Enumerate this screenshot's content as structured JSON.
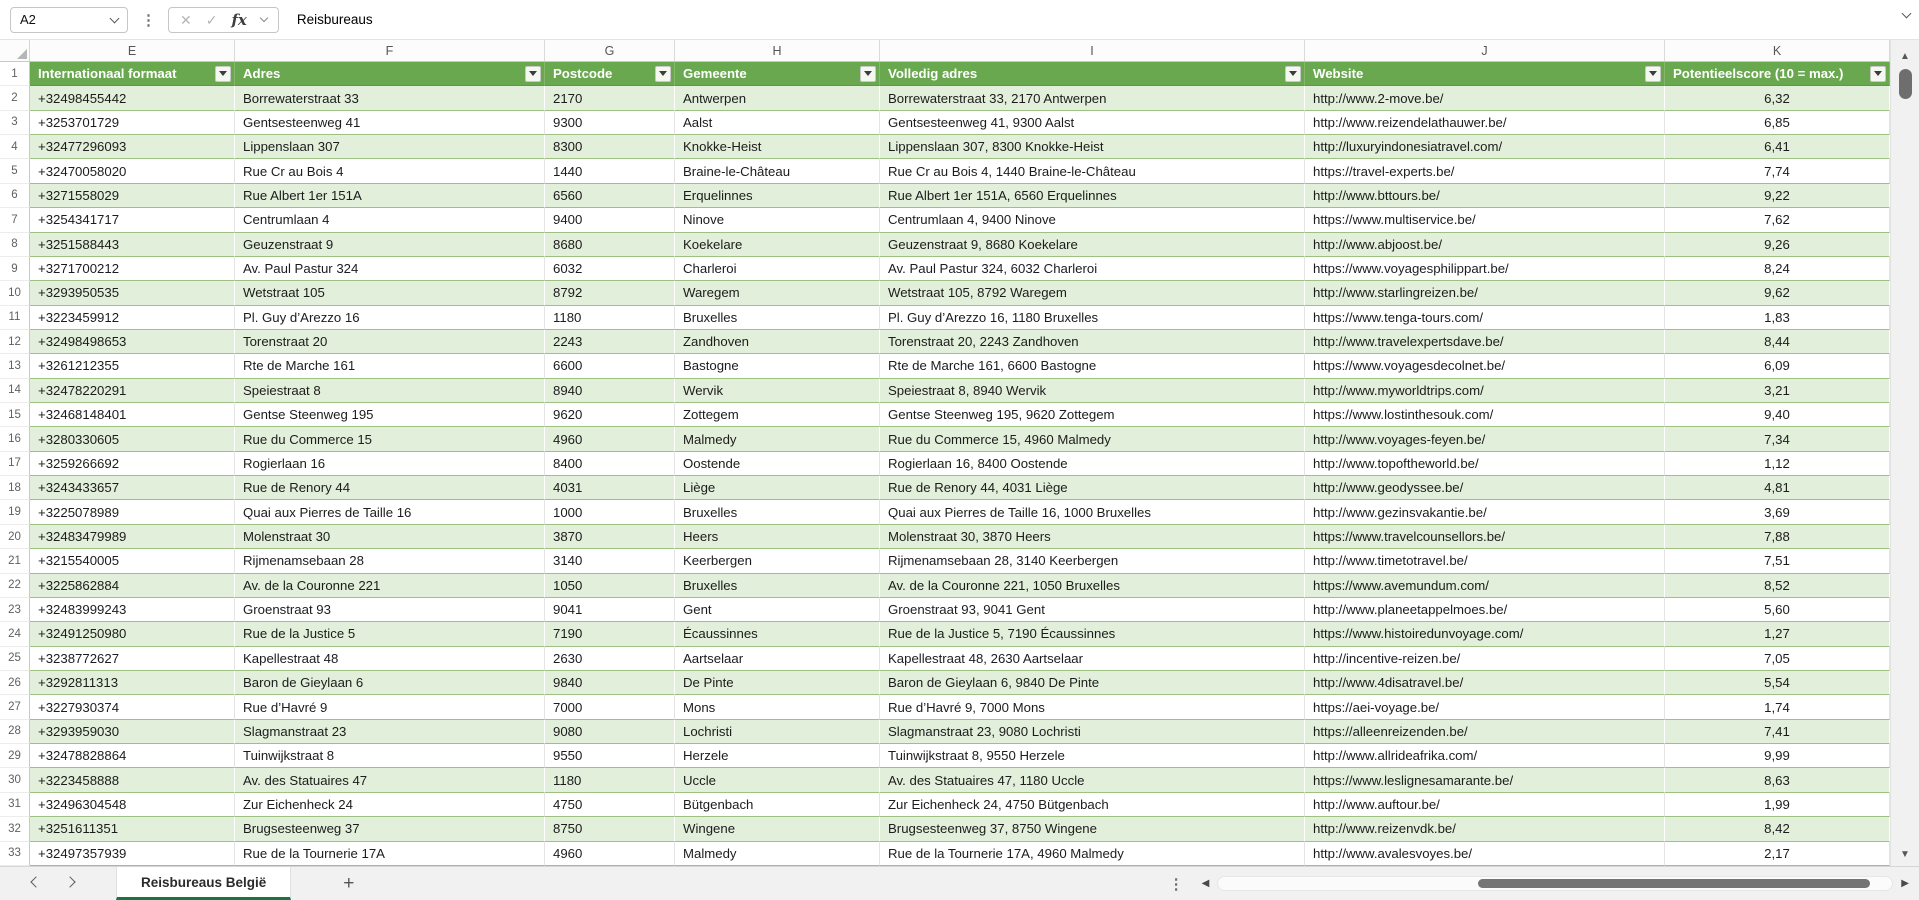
{
  "formula_bar": {
    "name_box": "A2",
    "formula": "Reisbureaus"
  },
  "icons": {
    "cancel": "✕",
    "confirm": "✓",
    "function": "fx",
    "more_vertical": "⋮",
    "add_sheet": "+",
    "scroll_up": "▲",
    "scroll_down": "▼",
    "scroll_left": "◀",
    "scroll_right": "▶"
  },
  "grid": {
    "column_letters": [
      "E",
      "F",
      "G",
      "H",
      "I",
      "J",
      "K"
    ],
    "first_row": 1,
    "row_count": 33
  },
  "table": {
    "colors": {
      "header_bg": "#6AA84F",
      "band_bg": "#E2EFDA",
      "gridline": "#9cc183"
    },
    "columns": [
      {
        "letter": "E",
        "label": "Internationaal formaat"
      },
      {
        "letter": "F",
        "label": "Adres"
      },
      {
        "letter": "G",
        "label": "Postcode"
      },
      {
        "letter": "H",
        "label": "Gemeente"
      },
      {
        "letter": "I",
        "label": "Volledig adres"
      },
      {
        "letter": "J",
        "label": "Website"
      },
      {
        "letter": "K",
        "label": "Potentieelscore (10 = max.)"
      }
    ],
    "rows": [
      [
        "+32498455442",
        "Borrewaterstraat 33",
        "2170",
        "Antwerpen",
        "Borrewaterstraat 33, 2170 Antwerpen",
        "http://www.2-move.be/",
        "6,32"
      ],
      [
        "+3253701729",
        "Gentsesteenweg 41",
        "9300",
        "Aalst",
        "Gentsesteenweg 41, 9300 Aalst",
        "http://www.reizendelathauwer.be/",
        "6,85"
      ],
      [
        "+32477296093",
        "Lippenslaan 307",
        "8300",
        "Knokke-Heist",
        "Lippenslaan 307, 8300 Knokke-Heist",
        "http://luxuryindonesiatravel.com/",
        "6,41"
      ],
      [
        "+32470058020",
        "Rue Cr au Bois 4",
        "1440",
        "Braine-le-Château",
        "Rue Cr au Bois 4, 1440 Braine-le-Château",
        "https://travel-experts.be/",
        "7,74"
      ],
      [
        "+3271558029",
        "Rue Albert 1er 151A",
        "6560",
        "Erquelinnes",
        "Rue Albert 1er 151A, 6560 Erquelinnes",
        "http://www.bttours.be/",
        "9,22"
      ],
      [
        "+3254341717",
        "Centrumlaan 4",
        "9400",
        "Ninove",
        "Centrumlaan 4, 9400 Ninove",
        "https://www.multiservice.be/",
        "7,62"
      ],
      [
        "+3251588443",
        "Geuzenstraat 9",
        "8680",
        "Koekelare",
        "Geuzenstraat 9, 8680 Koekelare",
        "http://www.abjoost.be/",
        "9,26"
      ],
      [
        "+3271700212",
        "Av. Paul Pastur 324",
        "6032",
        "Charleroi",
        "Av. Paul Pastur 324, 6032 Charleroi",
        "https://www.voyagesphilippart.be/",
        "8,24"
      ],
      [
        "+3293950535",
        "Wetstraat 105",
        "8792",
        "Waregem",
        "Wetstraat 105, 8792 Waregem",
        "http://www.starlingreizen.be/",
        "9,62"
      ],
      [
        "+3223459912",
        "Pl. Guy d’Arezzo 16",
        "1180",
        "Bruxelles",
        "Pl. Guy d’Arezzo 16, 1180 Bruxelles",
        "https://www.tenga-tours.com/",
        "1,83"
      ],
      [
        "+32498498653",
        "Torenstraat 20",
        "2243",
        "Zandhoven",
        "Torenstraat 20, 2243 Zandhoven",
        "http://www.travelexpertsdave.be/",
        "8,44"
      ],
      [
        "+3261212355",
        "Rte de Marche 161",
        "6600",
        "Bastogne",
        "Rte de Marche 161, 6600 Bastogne",
        "https://www.voyagesdecolnet.be/",
        "6,09"
      ],
      [
        "+32478220291",
        "Speiestraat 8",
        "8940",
        "Wervik",
        "Speiestraat 8, 8940 Wervik",
        "http://www.myworldtrips.com/",
        "3,21"
      ],
      [
        "+32468148401",
        "Gentse Steenweg 195",
        "9620",
        "Zottegem",
        "Gentse Steenweg 195, 9620 Zottegem",
        "https://www.lostinthesouk.com/",
        "9,40"
      ],
      [
        "+3280330605",
        "Rue du Commerce 15",
        "4960",
        "Malmedy",
        "Rue du Commerce 15, 4960 Malmedy",
        "http://www.voyages-feyen.be/",
        "7,34"
      ],
      [
        "+3259266692",
        "Rogierlaan 16",
        "8400",
        "Oostende",
        "Rogierlaan 16, 8400 Oostende",
        "http://www.topoftheworld.be/",
        "1,12"
      ],
      [
        "+3243433657",
        "Rue de Renory 44",
        "4031",
        "Liège",
        "Rue de Renory 44, 4031 Liège",
        "http://www.geodyssee.be/",
        "4,81"
      ],
      [
        "+3225078989",
        "Quai aux Pierres de Taille 16",
        "1000",
        "Bruxelles",
        "Quai aux Pierres de Taille 16, 1000 Bruxelles",
        "http://www.gezinsvakantie.be/",
        "3,69"
      ],
      [
        "+32483479989",
        "Molenstraat 30",
        "3870",
        "Heers",
        "Molenstraat 30, 3870 Heers",
        "https://www.travelcounsellors.be/",
        "7,88"
      ],
      [
        "+3215540005",
        "Rijmenamsebaan 28",
        "3140",
        "Keerbergen",
        "Rijmenamsebaan 28, 3140 Keerbergen",
        "http://www.timetotravel.be/",
        "7,51"
      ],
      [
        "+3225862884",
        "Av. de la Couronne 221",
        "1050",
        "Bruxelles",
        "Av. de la Couronne 221, 1050 Bruxelles",
        "https://www.avemundum.com/",
        "8,52"
      ],
      [
        "+32483999243",
        "Groenstraat 93",
        "9041",
        "Gent",
        "Groenstraat 93, 9041 Gent",
        "http://www.planeetappelmoes.be/",
        "5,60"
      ],
      [
        "+32491250980",
        "Rue de la Justice 5",
        "7190",
        "Écaussinnes",
        "Rue de la Justice 5, 7190 Écaussinnes",
        "https://www.histoiredunvoyage.com/",
        "1,27"
      ],
      [
        "+3238772627",
        "Kapellestraat 48",
        "2630",
        "Aartselaar",
        "Kapellestraat 48, 2630 Aartselaar",
        "http://incentive-reizen.be/",
        "7,05"
      ],
      [
        "+3292811313",
        "Baron de Gieylaan 6",
        "9840",
        "De Pinte",
        "Baron de Gieylaan 6, 9840 De Pinte",
        "http://www.4disatravel.be/",
        "5,54"
      ],
      [
        "+3227930374",
        "Rue d’Havré 9",
        "7000",
        "Mons",
        "Rue d’Havré 9, 7000 Mons",
        "https://aei-voyage.be/",
        "1,74"
      ],
      [
        "+3293959030",
        "Slagmanstraat 23",
        "9080",
        "Lochristi",
        "Slagmanstraat 23, 9080 Lochristi",
        "https://alleenreizenden.be/",
        "7,41"
      ],
      [
        "+32478828864",
        "Tuinwijkstraat 8",
        "9550",
        "Herzele",
        "Tuinwijkstraat 8, 9550 Herzele",
        "http://www.allrideafrika.com/",
        "9,99"
      ],
      [
        "+3223458888",
        "Av. des Statuaires 47",
        "1180",
        "Uccle",
        "Av. des Statuaires 47, 1180 Uccle",
        "https://www.leslignesamarante.be/",
        "8,63"
      ],
      [
        "+32496304548",
        "Zur Eichenheck 24",
        "4750",
        "Bütgenbach",
        "Zur Eichenheck 24, 4750 Bütgenbach",
        "http://www.auftour.be/",
        "1,99"
      ],
      [
        "+3251611351",
        "Brugsesteenweg 37",
        "8750",
        "Wingene",
        "Brugsesteenweg 37, 8750 Wingene",
        "http://www.reizenvdk.be/",
        "8,42"
      ],
      [
        "+32497357939",
        "Rue de la Tournerie 17A",
        "4960",
        "Malmedy",
        "Rue de la Tournerie 17A, 4960 Malmedy",
        "http://www.avalesvoyes.be/",
        "2,17"
      ]
    ]
  },
  "sheet_bar": {
    "active_tab": "Reisbureaus België"
  }
}
